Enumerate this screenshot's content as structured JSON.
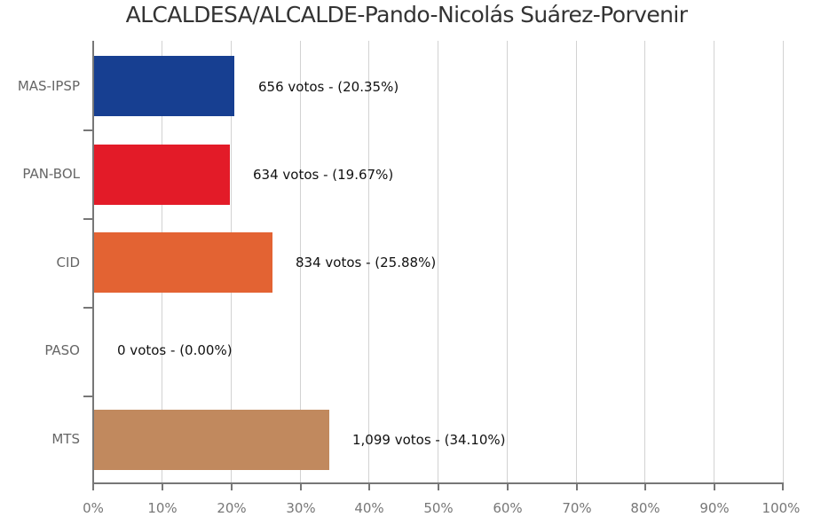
{
  "title": "ALCALDESA/ALCALDE-Pando-Nicolás Suárez-Porvenir",
  "chart_data": {
    "type": "bar",
    "orientation": "horizontal",
    "title": "ALCALDESA/ALCALDE-Pando-Nicolás Suárez-Porvenir",
    "xlabel": "",
    "ylabel": "",
    "xlim": [
      0,
      100
    ],
    "x_ticks": [
      "0%",
      "10%",
      "20%",
      "30%",
      "40%",
      "50%",
      "60%",
      "70%",
      "80%",
      "90%",
      "100%"
    ],
    "grid": true,
    "legend": null,
    "categories": [
      "MAS-IPSP",
      "PAN-BOL",
      "CID",
      "PASO",
      "MTS"
    ],
    "votes": [
      656,
      634,
      834,
      0,
      1099
    ],
    "values": [
      20.35,
      19.67,
      25.88,
      0.0,
      34.1
    ],
    "colors": [
      "#173f91",
      "#e31b28",
      "#e36333",
      "#cccccc",
      "#c1895e"
    ],
    "labels": [
      "656 votos - (20.35%)",
      "634 votos - (19.67%)",
      "834 votos - (25.88%)",
      "0 votos - (0.00%)",
      "1,099 votos - (34.10%)"
    ]
  },
  "axis": {
    "x_ticks": [
      "0%",
      "10%",
      "20%",
      "30%",
      "40%",
      "50%",
      "60%",
      "70%",
      "80%",
      "90%",
      "100%"
    ]
  },
  "bars": [
    {
      "category": "MAS-IPSP",
      "label": "656 votos - (20.35%)",
      "value": 20.35,
      "color": "#173f91"
    },
    {
      "category": "PAN-BOL",
      "label": "634 votos - (19.67%)",
      "value": 19.67,
      "color": "#e31b28"
    },
    {
      "category": "CID",
      "label": "834 votos - (25.88%)",
      "value": 25.88,
      "color": "#e36333"
    },
    {
      "category": "PASO",
      "label": "0 votos - (0.00%)",
      "value": 0.0,
      "color": "#cccccc"
    },
    {
      "category": "MTS",
      "label": "1,099 votos - (34.10%)",
      "value": 34.1,
      "color": "#c1895e"
    }
  ]
}
